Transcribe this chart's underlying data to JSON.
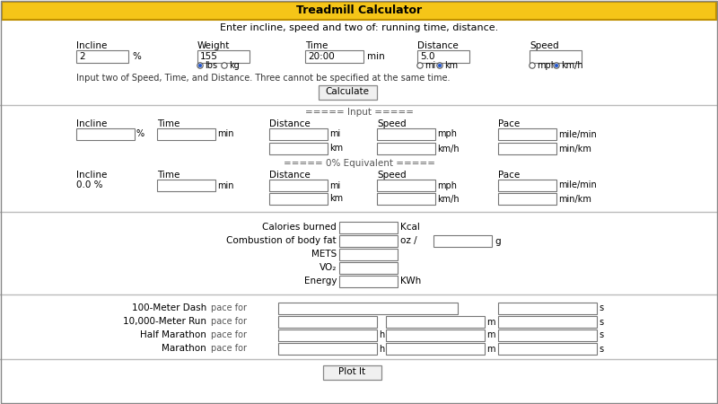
{
  "title": "Treadmill Calculator",
  "title_bg": "#F5C518",
  "title_color": "#000000",
  "subtitle": "Enter incline, speed and two of: running time, distance.",
  "bg_color": "#FFFFFF",
  "input_note": "Input two of Speed, Time, and Distance. Three cannot be specified at the same time.",
  "calculate_btn": "Calculate",
  "input_section2_title": "===== Input =====",
  "equiv_section_title": "===== 0% Equivalent =====",
  "plot_it_btn": "Plot It",
  "outer_border": "#888888",
  "separator_color": "#BBBBBB",
  "box_color": "#777777",
  "radio_fill": "#2255CC"
}
